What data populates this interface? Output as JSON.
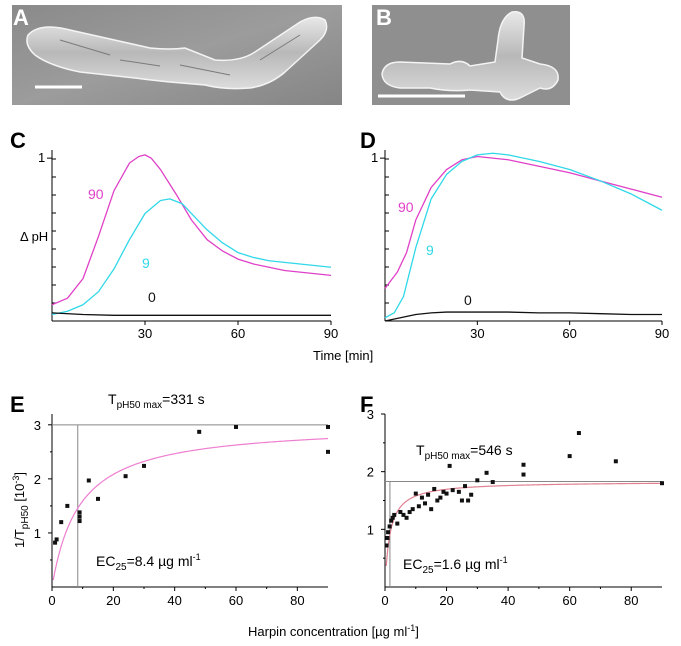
{
  "colors": {
    "magenta": "#e040c8",
    "cyan": "#30d8e8",
    "black": "#111111",
    "fit": "#ee7fd0",
    "fit_f": "#e08090"
  },
  "chart_data": [
    {
      "panel": "A",
      "type": "image",
      "description_visible": "micrograph"
    },
    {
      "panel": "B",
      "type": "image"
    },
    {
      "panel": "C",
      "type": "line",
      "ylabel": "Δ pH",
      "xlim": [
        0,
        90
      ],
      "ylim": [
        0,
        1.05
      ],
      "xticks": [
        "30",
        "60",
        "90"
      ],
      "yticks": [
        "1"
      ],
      "series": [
        {
          "name": "90",
          "color": "magenta",
          "x": [
            0,
            5,
            10,
            15,
            20,
            25,
            28,
            30,
            32,
            35,
            40,
            45,
            50,
            55,
            60,
            65,
            70,
            75,
            80,
            85,
            90
          ],
          "y": [
            0.1,
            0.14,
            0.26,
            0.52,
            0.8,
            0.97,
            1.01,
            1.02,
            1.0,
            0.93,
            0.78,
            0.62,
            0.5,
            0.43,
            0.38,
            0.35,
            0.33,
            0.31,
            0.3,
            0.29,
            0.28
          ]
        },
        {
          "name": "9",
          "color": "cyan",
          "x": [
            0,
            5,
            10,
            15,
            20,
            25,
            30,
            35,
            38,
            42,
            45,
            50,
            55,
            60,
            65,
            70,
            75,
            80,
            85,
            90
          ],
          "y": [
            0.04,
            0.06,
            0.1,
            0.18,
            0.32,
            0.5,
            0.66,
            0.74,
            0.75,
            0.72,
            0.66,
            0.56,
            0.48,
            0.42,
            0.39,
            0.37,
            0.36,
            0.35,
            0.34,
            0.33
          ]
        },
        {
          "name": "0",
          "color": "black",
          "x": [
            0,
            10,
            20,
            30,
            40,
            50,
            60,
            70,
            80,
            90
          ],
          "y": [
            0.05,
            0.04,
            0.035,
            0.035,
            0.035,
            0.035,
            0.035,
            0.035,
            0.035,
            0.035
          ]
        }
      ]
    },
    {
      "panel": "D",
      "type": "line",
      "xlim": [
        0,
        90
      ],
      "ylim": [
        0,
        1.05
      ],
      "xticks": [
        "30",
        "60",
        "90"
      ],
      "yticks": [
        "1"
      ],
      "series": [
        {
          "name": "90",
          "color": "magenta",
          "x": [
            0,
            2,
            4,
            7,
            10,
            15,
            20,
            25,
            30,
            35,
            40,
            50,
            60,
            70,
            80,
            90
          ],
          "y": [
            0.2,
            0.25,
            0.3,
            0.42,
            0.62,
            0.82,
            0.93,
            0.99,
            1.01,
            1.0,
            0.99,
            0.95,
            0.91,
            0.86,
            0.81,
            0.76
          ]
        },
        {
          "name": "9",
          "color": "cyan",
          "x": [
            0,
            3,
            6,
            10,
            15,
            20,
            25,
            30,
            35,
            40,
            50,
            60,
            70,
            80,
            90
          ],
          "y": [
            0.02,
            0.05,
            0.15,
            0.45,
            0.75,
            0.9,
            0.98,
            1.02,
            1.03,
            1.02,
            0.98,
            0.93,
            0.86,
            0.78,
            0.68
          ]
        },
        {
          "name": "0",
          "color": "black",
          "x": [
            0,
            5,
            10,
            15,
            20,
            30,
            40,
            50,
            60,
            70,
            80,
            90
          ],
          "y": [
            0.0,
            0.02,
            0.04,
            0.05,
            0.055,
            0.055,
            0.055,
            0.05,
            0.05,
            0.045,
            0.04,
            0.04
          ]
        }
      ]
    },
    {
      "panel": "E",
      "type": "scatter",
      "ylabel_main": "1/T",
      "ylabel_sub": "pH50",
      "ylabel_tail": " [10",
      "ylabel_exp": "-3",
      "ylabel_end": "]",
      "annotation_t": "T",
      "annotation_t_sub": "pH50 max",
      "annotation_t_value": "=331 s",
      "annotation_ec": "EC",
      "annotation_ec_sub": "25",
      "annotation_ec_value": "=8.4 µg ml",
      "annotation_ec_exp": "-1",
      "xlim": [
        0,
        90
      ],
      "ylim": [
        0,
        3.2
      ],
      "xticks": [
        "0",
        "20",
        "40",
        "60",
        "80"
      ],
      "yticks": [
        "1",
        "2",
        "3"
      ],
      "max_line": 3.0,
      "ec_line": 8.4,
      "fit": {
        "ymax": 3.02,
        "k": 9.0
      },
      "points": [
        [
          1,
          0.82
        ],
        [
          1.5,
          0.88
        ],
        [
          3,
          1.2
        ],
        [
          5,
          1.5
        ],
        [
          9,
          1.22
        ],
        [
          9,
          1.3
        ],
        [
          9,
          1.38
        ],
        [
          12,
          1.97
        ],
        [
          15,
          1.63
        ],
        [
          24,
          2.05
        ],
        [
          30,
          2.24
        ],
        [
          48,
          2.87
        ],
        [
          60,
          2.96
        ],
        [
          90,
          2.96
        ],
        [
          90,
          2.5
        ]
      ]
    },
    {
      "panel": "F",
      "type": "scatter",
      "annotation_t": "T",
      "annotation_t_sub": "pH50 max",
      "annotation_t_value": "=546 s",
      "annotation_ec": "EC",
      "annotation_ec_sub": "25",
      "annotation_ec_value": "=1.6 µg ml",
      "annotation_ec_exp": "-1",
      "xlim": [
        0,
        90
      ],
      "ylim": [
        0,
        3.0
      ],
      "xticks": [
        "0",
        "20",
        "40",
        "60",
        "80"
      ],
      "yticks": [
        "1",
        "2",
        "3"
      ],
      "max_line": 1.83,
      "ec_line": 1.6,
      "fit": {
        "ymax": 1.83,
        "k": 1.6
      },
      "points": [
        [
          0.5,
          0.72
        ],
        [
          0.8,
          0.85
        ],
        [
          1,
          0.95
        ],
        [
          1.5,
          1.05
        ],
        [
          2,
          1.15
        ],
        [
          2.5,
          1.2
        ],
        [
          3,
          1.25
        ],
        [
          4,
          1.1
        ],
        [
          5,
          1.3
        ],
        [
          6,
          1.25
        ],
        [
          7,
          1.2
        ],
        [
          8,
          1.3
        ],
        [
          9,
          1.35
        ],
        [
          10,
          1.62
        ],
        [
          11,
          1.4
        ],
        [
          12,
          1.55
        ],
        [
          13,
          1.45
        ],
        [
          14,
          1.6
        ],
        [
          15,
          1.35
        ],
        [
          16,
          1.7
        ],
        [
          17,
          1.5
        ],
        [
          18,
          1.55
        ],
        [
          19,
          1.65
        ],
        [
          20,
          1.62
        ],
        [
          21,
          2.1
        ],
        [
          22,
          1.68
        ],
        [
          24,
          1.65
        ],
        [
          25,
          1.5
        ],
        [
          26,
          1.75
        ],
        [
          27,
          1.5
        ],
        [
          28,
          1.6
        ],
        [
          30,
          1.85
        ],
        [
          33,
          1.98
        ],
        [
          35,
          1.82
        ],
        [
          45,
          2.12
        ],
        [
          45,
          1.95
        ],
        [
          60,
          2.27
        ],
        [
          63,
          2.67
        ],
        [
          75,
          2.18
        ],
        [
          90,
          1.8
        ]
      ]
    }
  ],
  "panels": {
    "A": "A",
    "B": "B",
    "C": "C",
    "D": "D",
    "E": "E",
    "F": "F"
  },
  "shared": {
    "time_label": "Time [min]",
    "harpin_label": "Harpin concentration [µg ml",
    "harpin_exp": "-1",
    "harpin_end": "]"
  }
}
